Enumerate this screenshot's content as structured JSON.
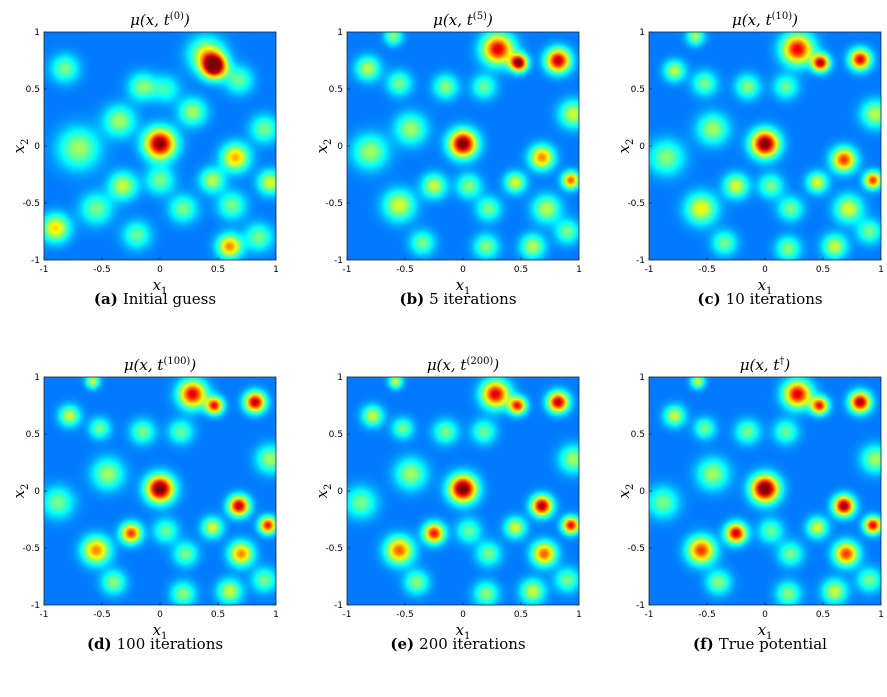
{
  "chart_data": [
    {
      "type": "heatmap",
      "panel_label": "(a)",
      "caption": "Initial guess",
      "title": "μ(x, t",
      "title_sup": "(0)",
      "xlabel": "x",
      "xlabel_sub": "1",
      "ylabel": "x",
      "ylabel_sub": "2",
      "xlim": [
        -1,
        1
      ],
      "ylim": [
        -1,
        1
      ],
      "xticks": [
        "-1",
        "-0.5",
        "0",
        "0.5",
        "1"
      ],
      "yticks": [
        "-1",
        "-0.5",
        "0",
        "0.5",
        "1"
      ],
      "colormap": "jet",
      "peaks": [
        [
          0.47,
          0.7,
          1.0,
          0.07
        ],
        [
          0.4,
          0.8,
          0.45,
          0.1
        ],
        [
          0.0,
          0.02,
          0.92,
          0.09
        ],
        [
          -0.82,
          0.68,
          0.3,
          0.08
        ],
        [
          -0.15,
          0.52,
          0.32,
          0.08
        ],
        [
          0.05,
          0.5,
          0.22,
          0.08
        ],
        [
          0.28,
          0.3,
          0.35,
          0.08
        ],
        [
          -0.35,
          0.22,
          0.35,
          0.09
        ],
        [
          0.68,
          0.58,
          0.28,
          0.08
        ],
        [
          -0.7,
          -0.02,
          0.35,
          0.12
        ],
        [
          0.65,
          -0.1,
          0.55,
          0.08
        ],
        [
          0.9,
          0.15,
          0.3,
          0.08
        ],
        [
          -0.32,
          -0.35,
          0.4,
          0.08
        ],
        [
          0.0,
          -0.3,
          0.3,
          0.08
        ],
        [
          0.45,
          -0.3,
          0.38,
          0.07
        ],
        [
          0.95,
          -0.32,
          0.42,
          0.07
        ],
        [
          -0.55,
          -0.55,
          0.3,
          0.09
        ],
        [
          0.2,
          -0.55,
          0.3,
          0.08
        ],
        [
          0.62,
          -0.52,
          0.3,
          0.08
        ],
        [
          -0.9,
          -0.72,
          0.5,
          0.08
        ],
        [
          0.6,
          -0.88,
          0.6,
          0.07
        ],
        [
          -0.2,
          -0.78,
          0.28,
          0.08
        ],
        [
          0.85,
          -0.8,
          0.3,
          0.08
        ]
      ]
    },
    {
      "type": "heatmap",
      "panel_label": "(b)",
      "caption": "5 iterations",
      "title": "μ(x, t",
      "title_sup": "(5)",
      "xlabel": "x",
      "xlabel_sub": "1",
      "ylabel": "x",
      "ylabel_sub": "2",
      "xlim": [
        -1,
        1
      ],
      "ylim": [
        -1,
        1
      ],
      "xticks": [
        "-1",
        "-0.5",
        "0",
        "0.5",
        "1"
      ],
      "yticks": [
        "-1",
        "-0.5",
        "0",
        "0.5",
        "1"
      ],
      "colormap": "jet",
      "peaks": [
        [
          0.3,
          0.85,
          0.8,
          0.09
        ],
        [
          0.48,
          0.73,
          0.95,
          0.05
        ],
        [
          0.82,
          0.75,
          0.85,
          0.07
        ],
        [
          -0.6,
          0.96,
          0.32,
          0.05
        ],
        [
          -0.82,
          0.68,
          0.38,
          0.07
        ],
        [
          -0.55,
          0.55,
          0.3,
          0.07
        ],
        [
          -0.15,
          0.52,
          0.32,
          0.07
        ],
        [
          0.18,
          0.52,
          0.28,
          0.07
        ],
        [
          0.95,
          0.28,
          0.4,
          0.08
        ],
        [
          0.0,
          0.02,
          0.95,
          0.08
        ],
        [
          -0.45,
          0.15,
          0.35,
          0.09
        ],
        [
          -0.8,
          -0.05,
          0.35,
          0.1
        ],
        [
          0.68,
          -0.1,
          0.6,
          0.07
        ],
        [
          0.93,
          -0.3,
          0.65,
          0.05
        ],
        [
          -0.25,
          -0.35,
          0.4,
          0.07
        ],
        [
          0.05,
          -0.35,
          0.32,
          0.07
        ],
        [
          0.45,
          -0.32,
          0.42,
          0.06
        ],
        [
          -0.55,
          -0.52,
          0.42,
          0.09
        ],
        [
          0.22,
          -0.55,
          0.3,
          0.07
        ],
        [
          0.72,
          -0.55,
          0.38,
          0.08
        ],
        [
          -0.35,
          -0.85,
          0.3,
          0.07
        ],
        [
          0.2,
          -0.88,
          0.32,
          0.07
        ],
        [
          0.6,
          -0.88,
          0.38,
          0.07
        ],
        [
          0.9,
          -0.75,
          0.3,
          0.07
        ]
      ]
    },
    {
      "type": "heatmap",
      "panel_label": "(c)",
      "caption": "10 iterations",
      "title": "μ(x, t",
      "title_sup": "(10)",
      "xlabel": "x",
      "xlabel_sub": "1",
      "ylabel": "x",
      "ylabel_sub": "2",
      "xlim": [
        -1,
        1
      ],
      "ylim": [
        -1,
        1
      ],
      "xticks": [
        "-1",
        "-0.5",
        "0",
        "0.5",
        "1"
      ],
      "yticks": [
        "-1",
        "-0.5",
        "0",
        "0.5",
        "1"
      ],
      "colormap": "jet",
      "peaks": [
        [
          0.28,
          0.85,
          0.78,
          0.09
        ],
        [
          0.48,
          0.73,
          0.85,
          0.05
        ],
        [
          0.82,
          0.76,
          0.8,
          0.06
        ],
        [
          -0.6,
          0.96,
          0.35,
          0.05
        ],
        [
          -0.78,
          0.66,
          0.38,
          0.06
        ],
        [
          -0.52,
          0.55,
          0.3,
          0.07
        ],
        [
          -0.15,
          0.52,
          0.32,
          0.07
        ],
        [
          0.18,
          0.52,
          0.28,
          0.07
        ],
        [
          0.95,
          0.28,
          0.38,
          0.08
        ],
        [
          0.0,
          0.02,
          0.95,
          0.08
        ],
        [
          -0.45,
          0.15,
          0.35,
          0.09
        ],
        [
          -0.85,
          -0.1,
          0.32,
          0.1
        ],
        [
          0.68,
          -0.12,
          0.7,
          0.07
        ],
        [
          0.93,
          -0.3,
          0.7,
          0.05
        ],
        [
          -0.25,
          -0.35,
          0.42,
          0.07
        ],
        [
          0.05,
          -0.35,
          0.3,
          0.07
        ],
        [
          0.45,
          -0.32,
          0.42,
          0.06
        ],
        [
          -0.55,
          -0.55,
          0.45,
          0.09
        ],
        [
          0.22,
          -0.55,
          0.3,
          0.07
        ],
        [
          0.72,
          -0.55,
          0.42,
          0.08
        ],
        [
          -0.35,
          -0.85,
          0.3,
          0.07
        ],
        [
          0.2,
          -0.9,
          0.32,
          0.07
        ],
        [
          0.6,
          -0.88,
          0.4,
          0.07
        ],
        [
          0.9,
          -0.75,
          0.3,
          0.07
        ]
      ]
    },
    {
      "type": "heatmap",
      "panel_label": "(d)",
      "caption": "100 iterations",
      "title": "μ(x, t",
      "title_sup": "(100)",
      "xlabel": "x",
      "xlabel_sub": "1",
      "ylabel": "x",
      "ylabel_sub": "2",
      "xlim": [
        -1,
        1
      ],
      "ylim": [
        -1,
        1
      ],
      "xticks": [
        "-1",
        "-0.5",
        "0",
        "0.5",
        "1"
      ],
      "yticks": [
        "-1",
        "-0.5",
        "0",
        "0.5",
        "1"
      ],
      "colormap": "jet",
      "peaks": [
        [
          0.28,
          0.85,
          0.8,
          0.08
        ],
        [
          0.47,
          0.75,
          0.75,
          0.05
        ],
        [
          0.82,
          0.78,
          0.85,
          0.06
        ],
        [
          -0.58,
          0.96,
          0.4,
          0.04
        ],
        [
          -0.78,
          0.66,
          0.4,
          0.06
        ],
        [
          -0.52,
          0.55,
          0.3,
          0.06
        ],
        [
          -0.15,
          0.52,
          0.3,
          0.07
        ],
        [
          0.18,
          0.52,
          0.28,
          0.07
        ],
        [
          0.95,
          0.28,
          0.35,
          0.08
        ],
        [
          0.0,
          0.02,
          0.98,
          0.08
        ],
        [
          -0.45,
          0.15,
          0.35,
          0.09
        ],
        [
          -0.88,
          -0.1,
          0.3,
          0.09
        ],
        [
          0.68,
          -0.13,
          0.85,
          0.06
        ],
        [
          0.93,
          -0.3,
          0.75,
          0.05
        ],
        [
          -0.25,
          -0.37,
          0.7,
          0.06
        ],
        [
          0.05,
          -0.35,
          0.28,
          0.07
        ],
        [
          0.45,
          -0.32,
          0.42,
          0.06
        ],
        [
          -0.55,
          -0.52,
          0.6,
          0.08
        ],
        [
          0.22,
          -0.55,
          0.3,
          0.07
        ],
        [
          0.7,
          -0.55,
          0.6,
          0.07
        ],
        [
          -0.4,
          -0.8,
          0.32,
          0.07
        ],
        [
          0.2,
          -0.9,
          0.32,
          0.07
        ],
        [
          0.6,
          -0.88,
          0.4,
          0.07
        ],
        [
          0.9,
          -0.78,
          0.3,
          0.07
        ]
      ]
    },
    {
      "type": "heatmap",
      "panel_label": "(e)",
      "caption": "200 iterations",
      "title": "μ(x, t",
      "title_sup": "(200)",
      "xlabel": "x",
      "xlabel_sub": "1",
      "ylabel": "x",
      "ylabel_sub": "2",
      "xlim": [
        -1,
        1
      ],
      "ylim": [
        -1,
        1
      ],
      "xticks": [
        "-1",
        "-0.5",
        "0",
        "0.5",
        "1"
      ],
      "yticks": [
        "-1",
        "-0.5",
        "0",
        "0.5",
        "1"
      ],
      "colormap": "jet",
      "peaks": [
        [
          0.28,
          0.85,
          0.8,
          0.08
        ],
        [
          0.47,
          0.75,
          0.75,
          0.05
        ],
        [
          0.82,
          0.78,
          0.85,
          0.06
        ],
        [
          -0.58,
          0.96,
          0.4,
          0.04
        ],
        [
          -0.78,
          0.66,
          0.4,
          0.06
        ],
        [
          -0.52,
          0.55,
          0.3,
          0.06
        ],
        [
          -0.15,
          0.52,
          0.3,
          0.07
        ],
        [
          0.18,
          0.52,
          0.28,
          0.07
        ],
        [
          0.95,
          0.28,
          0.35,
          0.08
        ],
        [
          0.0,
          0.02,
          0.98,
          0.08
        ],
        [
          -0.45,
          0.15,
          0.35,
          0.09
        ],
        [
          -0.88,
          -0.1,
          0.3,
          0.09
        ],
        [
          0.68,
          -0.13,
          0.88,
          0.06
        ],
        [
          0.93,
          -0.3,
          0.78,
          0.05
        ],
        [
          -0.25,
          -0.37,
          0.75,
          0.06
        ],
        [
          0.05,
          -0.35,
          0.28,
          0.07
        ],
        [
          0.45,
          -0.32,
          0.42,
          0.06
        ],
        [
          -0.55,
          -0.52,
          0.65,
          0.08
        ],
        [
          0.22,
          -0.55,
          0.3,
          0.07
        ],
        [
          0.7,
          -0.55,
          0.65,
          0.07
        ],
        [
          -0.4,
          -0.8,
          0.32,
          0.07
        ],
        [
          0.2,
          -0.9,
          0.32,
          0.07
        ],
        [
          0.6,
          -0.88,
          0.4,
          0.07
        ],
        [
          0.9,
          -0.78,
          0.3,
          0.07
        ]
      ]
    },
    {
      "type": "heatmap",
      "panel_label": "(f)",
      "caption": "True potential",
      "title": "μ(x, t",
      "title_sup": "†",
      "xlabel": "x",
      "xlabel_sub": "1",
      "ylabel": "x",
      "ylabel_sub": "2",
      "xlim": [
        -1,
        1
      ],
      "ylim": [
        -1,
        1
      ],
      "xticks": [
        "-1",
        "-0.5",
        "0",
        "0.5",
        "1"
      ],
      "yticks": [
        "-1",
        "-0.5",
        "0",
        "0.5",
        "1"
      ],
      "colormap": "jet",
      "peaks": [
        [
          0.28,
          0.85,
          0.8,
          0.08
        ],
        [
          0.47,
          0.75,
          0.75,
          0.05
        ],
        [
          0.82,
          0.78,
          0.88,
          0.06
        ],
        [
          -0.58,
          0.96,
          0.4,
          0.04
        ],
        [
          -0.78,
          0.66,
          0.4,
          0.06
        ],
        [
          -0.52,
          0.55,
          0.3,
          0.06
        ],
        [
          -0.15,
          0.52,
          0.3,
          0.07
        ],
        [
          0.18,
          0.52,
          0.28,
          0.07
        ],
        [
          0.95,
          0.28,
          0.35,
          0.08
        ],
        [
          0.0,
          0.02,
          1.0,
          0.08
        ],
        [
          -0.45,
          0.15,
          0.35,
          0.09
        ],
        [
          -0.88,
          -0.1,
          0.3,
          0.09
        ],
        [
          0.68,
          -0.13,
          0.9,
          0.06
        ],
        [
          0.93,
          -0.3,
          0.8,
          0.05
        ],
        [
          -0.25,
          -0.37,
          0.82,
          0.06
        ],
        [
          0.05,
          -0.35,
          0.28,
          0.07
        ],
        [
          0.45,
          -0.32,
          0.42,
          0.06
        ],
        [
          -0.55,
          -0.52,
          0.7,
          0.08
        ],
        [
          0.22,
          -0.55,
          0.3,
          0.07
        ],
        [
          0.7,
          -0.55,
          0.7,
          0.07
        ],
        [
          -0.4,
          -0.8,
          0.32,
          0.07
        ],
        [
          0.2,
          -0.9,
          0.32,
          0.07
        ],
        [
          0.6,
          -0.88,
          0.4,
          0.07
        ],
        [
          0.9,
          -0.78,
          0.3,
          0.07
        ]
      ]
    }
  ]
}
